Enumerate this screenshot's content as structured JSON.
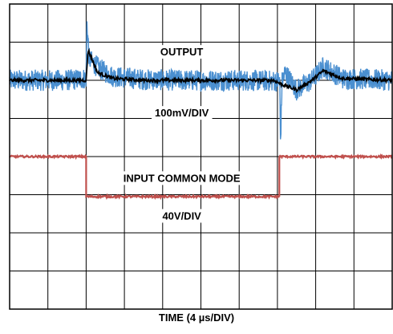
{
  "chart_data": {
    "type": "line",
    "grid": true,
    "divisions": {
      "x": 10,
      "y": 8
    },
    "xlabel": "TIME (4 µs/DIV)",
    "xlim": [
      0,
      10
    ],
    "ylim": [
      -4,
      4
    ],
    "annotations": {
      "output_label": "OUTPUT",
      "output_scale": "100mV/DIV",
      "input_label": "INPUT COMMON MODE",
      "input_scale": "40V/DIV"
    },
    "series": [
      {
        "key": "output-noise",
        "color": "#4a8fd0",
        "baseline_div": 2.0,
        "noise_amplitude_div": 0.28,
        "points": [
          [
            0,
            2.0
          ],
          [
            1.5,
            2.0
          ],
          [
            2.0,
            2.05
          ],
          [
            2.02,
            3.5
          ],
          [
            2.08,
            2.55
          ],
          [
            2.35,
            2.3
          ],
          [
            2.7,
            2.1
          ],
          [
            3.5,
            2.02
          ],
          [
            4.5,
            2.0
          ],
          [
            6.0,
            2.0
          ],
          [
            7.0,
            1.98
          ],
          [
            7.06,
            2.0
          ],
          [
            7.08,
            0.3
          ],
          [
            7.12,
            1.95
          ],
          [
            7.2,
            2.2
          ],
          [
            7.5,
            1.75
          ],
          [
            7.9,
            2.0
          ],
          [
            8.2,
            2.35
          ],
          [
            8.7,
            2.05
          ],
          [
            10.0,
            2.0
          ]
        ]
      },
      {
        "key": "output-mean",
        "color": "#000000",
        "points": [
          [
            0,
            2.0
          ],
          [
            1.5,
            2.0
          ],
          [
            2.0,
            2.0
          ],
          [
            2.05,
            2.8
          ],
          [
            2.3,
            2.2
          ],
          [
            2.7,
            2.05
          ],
          [
            3.5,
            2.0
          ],
          [
            6.9,
            2.0
          ],
          [
            7.1,
            1.9
          ],
          [
            7.5,
            1.75
          ],
          [
            7.9,
            2.0
          ],
          [
            8.2,
            2.25
          ],
          [
            8.7,
            2.05
          ],
          [
            10.0,
            2.0
          ]
        ]
      },
      {
        "key": "input-common-mode",
        "color": "#c0504d",
        "points": [
          [
            0,
            0.0
          ],
          [
            2.0,
            0.0
          ],
          [
            2.0,
            -1.05
          ],
          [
            7.05,
            -1.05
          ],
          [
            7.05,
            0.0
          ],
          [
            10.0,
            0.0
          ]
        ]
      }
    ]
  }
}
